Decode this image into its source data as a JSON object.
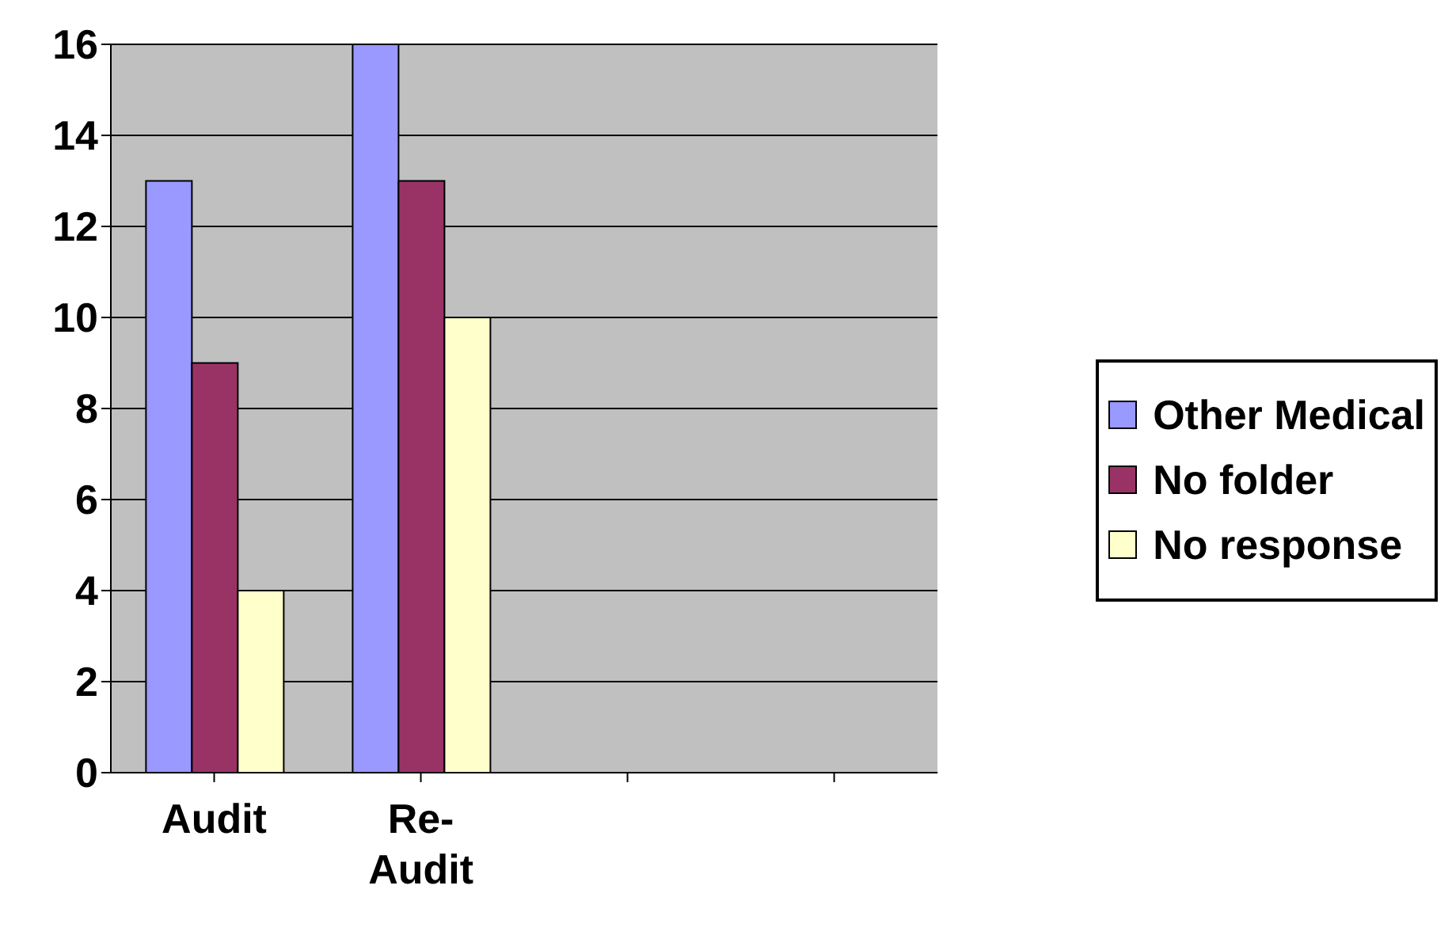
{
  "chart_data": {
    "type": "bar",
    "categories": [
      "Audit",
      "Re-Audit",
      null,
      null
    ],
    "series": [
      {
        "name": "Other Medical",
        "color": "#9999ff",
        "values": [
          13,
          16,
          null,
          null
        ]
      },
      {
        "name": "No folder",
        "color": "#993366",
        "values": [
          9,
          13,
          null,
          null
        ]
      },
      {
        "name": "No response",
        "color": "#ffffcc",
        "values": [
          4,
          10,
          null,
          null
        ]
      }
    ],
    "ylim": [
      0,
      16
    ],
    "yticks": [
      0,
      2,
      4,
      6,
      8,
      10,
      12,
      14,
      16
    ],
    "grid": "y",
    "legend": "right"
  }
}
